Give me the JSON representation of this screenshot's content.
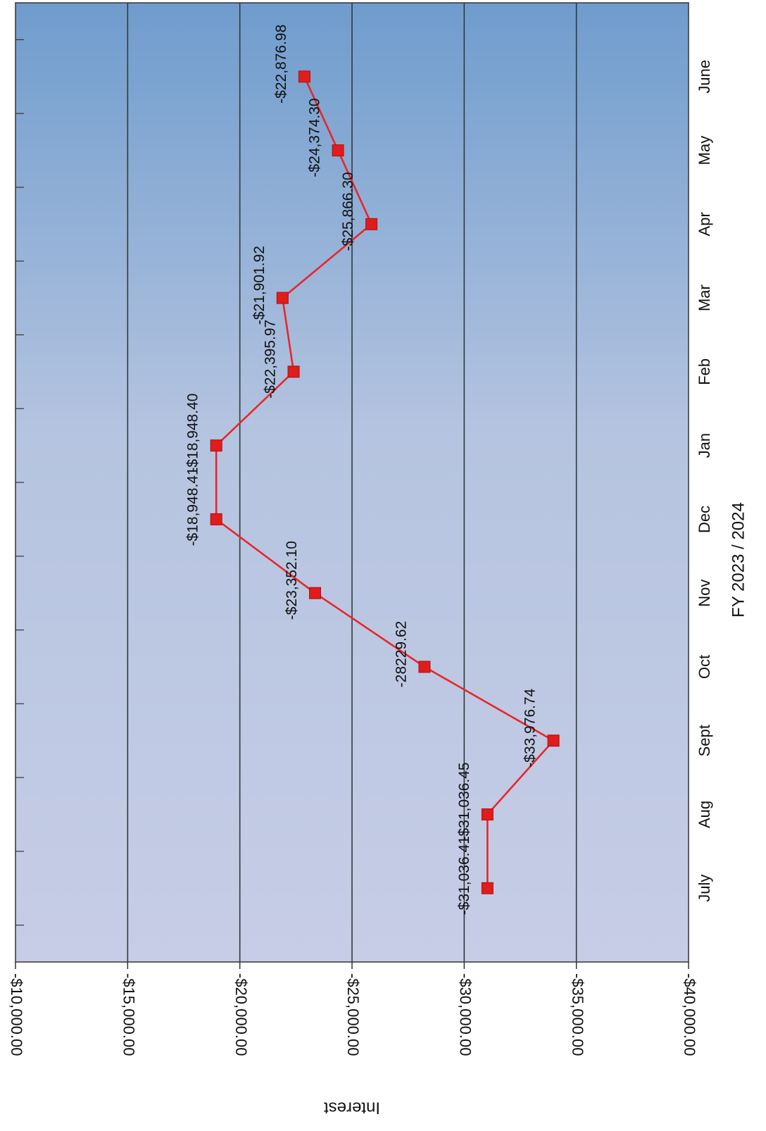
{
  "chart_data": {
    "type": "line",
    "xlabel": "FY 2023 / 2024",
    "ylabel": "Interest",
    "categories": [
      "July",
      "Aug",
      "Sept",
      "Oct",
      "Nov",
      "Dec",
      "Jan",
      "Feb",
      "Mar",
      "Apr",
      "May",
      "June"
    ],
    "series": [
      {
        "values": [
          -31036.41,
          -31036.45,
          -33976.74,
          -28229.62,
          -23352.1,
          -18948.41,
          -18948.4,
          -22395.97,
          -21901.92,
          -25866.3,
          -24374.3,
          -22876.98
        ],
        "labels": [
          "-$31,036.41",
          "-$31,036.45",
          "-$33,976.74",
          "-28229.62",
          "-$23,352.10",
          "-$18,948.41",
          "-$18,948.40",
          "-$22,395.97",
          "-$21,901.92",
          "-$25,866.30",
          "-$24,374.30",
          "-$22,876.98"
        ]
      }
    ],
    "ylim": [
      -40000,
      -10000
    ],
    "yticks": [
      -10000,
      -15000,
      -20000,
      -25000,
      -30000,
      -35000,
      -40000
    ],
    "ytick_labels": [
      "-$10,000.00",
      "-$15,000.00",
      "-$20,000.00",
      "-$25,000.00",
      "-$30,000.00",
      "-$35,000.00",
      "-$40,000.00"
    ],
    "grid": true,
    "orientation": "rotated 90 degrees clockwise",
    "colors": {
      "line": "#e8262a",
      "marker": "#e01c1c",
      "plot_bg_top": "#c7cde6",
      "plot_bg_bottom": "#6f9ccd",
      "grid": "#2e3a3a"
    }
  }
}
